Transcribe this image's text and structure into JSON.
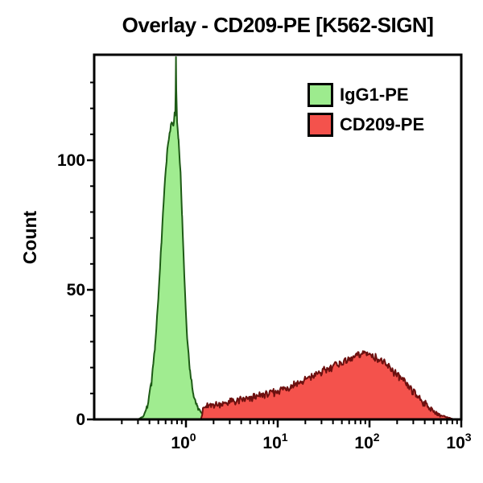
{
  "title": "Overlay - CD209-PE [K562-SIGN]",
  "y_axis": {
    "label": "Count",
    "tick_labels": [
      "0",
      "50",
      "100"
    ],
    "tick_values": [
      0,
      50,
      100
    ],
    "minor_step": 10,
    "max_visible": 140
  },
  "x_axis": {
    "scale": "log10",
    "tick_labels": [
      {
        "base": "10",
        "exp": "0"
      },
      {
        "base": "10",
        "exp": "1"
      },
      {
        "base": "10",
        "exp": "2"
      },
      {
        "base": "10",
        "exp": "3"
      }
    ],
    "tick_values": [
      1,
      10,
      100,
      1000
    ],
    "range": [
      0.1,
      1000
    ]
  },
  "legend": {
    "items": [
      {
        "label": "IgG1-PE",
        "fill": "#9deb8e",
        "edge": "#000000"
      },
      {
        "label": "CD209-PE",
        "fill": "#f4524c",
        "edge": "#000000"
      }
    ]
  },
  "chart_data": {
    "type": "area",
    "subtype": "flow-cytometry-histogram-overlay",
    "title": "Overlay - CD209-PE [K562-SIGN]",
    "xlabel": "",
    "ylabel": "Count",
    "x_scale": "log10",
    "xlim": [
      0.1,
      1000
    ],
    "ylim": [
      0,
      140
    ],
    "grid": false,
    "legend_position": "top-right-inside",
    "series": [
      {
        "name": "IgG1-PE",
        "fill": "#a0ec90",
        "stroke": "#1d5a15",
        "noise": 1.6,
        "points": [
          [
            0.3,
            0
          ],
          [
            0.34,
            1
          ],
          [
            0.38,
            5
          ],
          [
            0.42,
            14
          ],
          [
            0.46,
            28
          ],
          [
            0.5,
            47
          ],
          [
            0.54,
            68
          ],
          [
            0.58,
            88
          ],
          [
            0.62,
            102
          ],
          [
            0.66,
            110
          ],
          [
            0.7,
            115
          ],
          [
            0.73,
            113
          ],
          [
            0.752,
            118
          ],
          [
            0.765,
            118
          ],
          [
            0.772,
            127
          ],
          [
            0.778,
            139
          ],
          [
            0.785,
            127
          ],
          [
            0.8,
            115
          ],
          [
            0.83,
            108
          ],
          [
            0.87,
            96
          ],
          [
            0.91,
            78
          ],
          [
            0.96,
            55
          ],
          [
            1.02,
            34
          ],
          [
            1.1,
            19
          ],
          [
            1.2,
            10
          ],
          [
            1.32,
            5
          ],
          [
            1.5,
            2
          ],
          [
            1.7,
            1
          ],
          [
            1.9,
            0
          ]
        ]
      },
      {
        "name": "CD209-PE",
        "fill": "#f4524c",
        "stroke": "#6e100f",
        "noise": 2.4,
        "points": [
          [
            1.45,
            0
          ],
          [
            1.55,
            4
          ],
          [
            1.7,
            5
          ],
          [
            2.0,
            5.5
          ],
          [
            2.5,
            6
          ],
          [
            3.2,
            7
          ],
          [
            4.2,
            7.5
          ],
          [
            5.5,
            8.5
          ],
          [
            7,
            9.5
          ],
          [
            9,
            10.5
          ],
          [
            11,
            11.5
          ],
          [
            14,
            13
          ],
          [
            18,
            14.5
          ],
          [
            23,
            16
          ],
          [
            29,
            18
          ],
          [
            37,
            20
          ],
          [
            47,
            21.5
          ],
          [
            60,
            23
          ],
          [
            75,
            25
          ],
          [
            95,
            25.5
          ],
          [
            115,
            24
          ],
          [
            140,
            22
          ],
          [
            170,
            19.5
          ],
          [
            210,
            16.5
          ],
          [
            260,
            13
          ],
          [
            320,
            9.5
          ],
          [
            390,
            6.5
          ],
          [
            470,
            4
          ],
          [
            560,
            2
          ],
          [
            660,
            1
          ],
          [
            780,
            0.3
          ],
          [
            850,
            0
          ]
        ]
      }
    ]
  }
}
